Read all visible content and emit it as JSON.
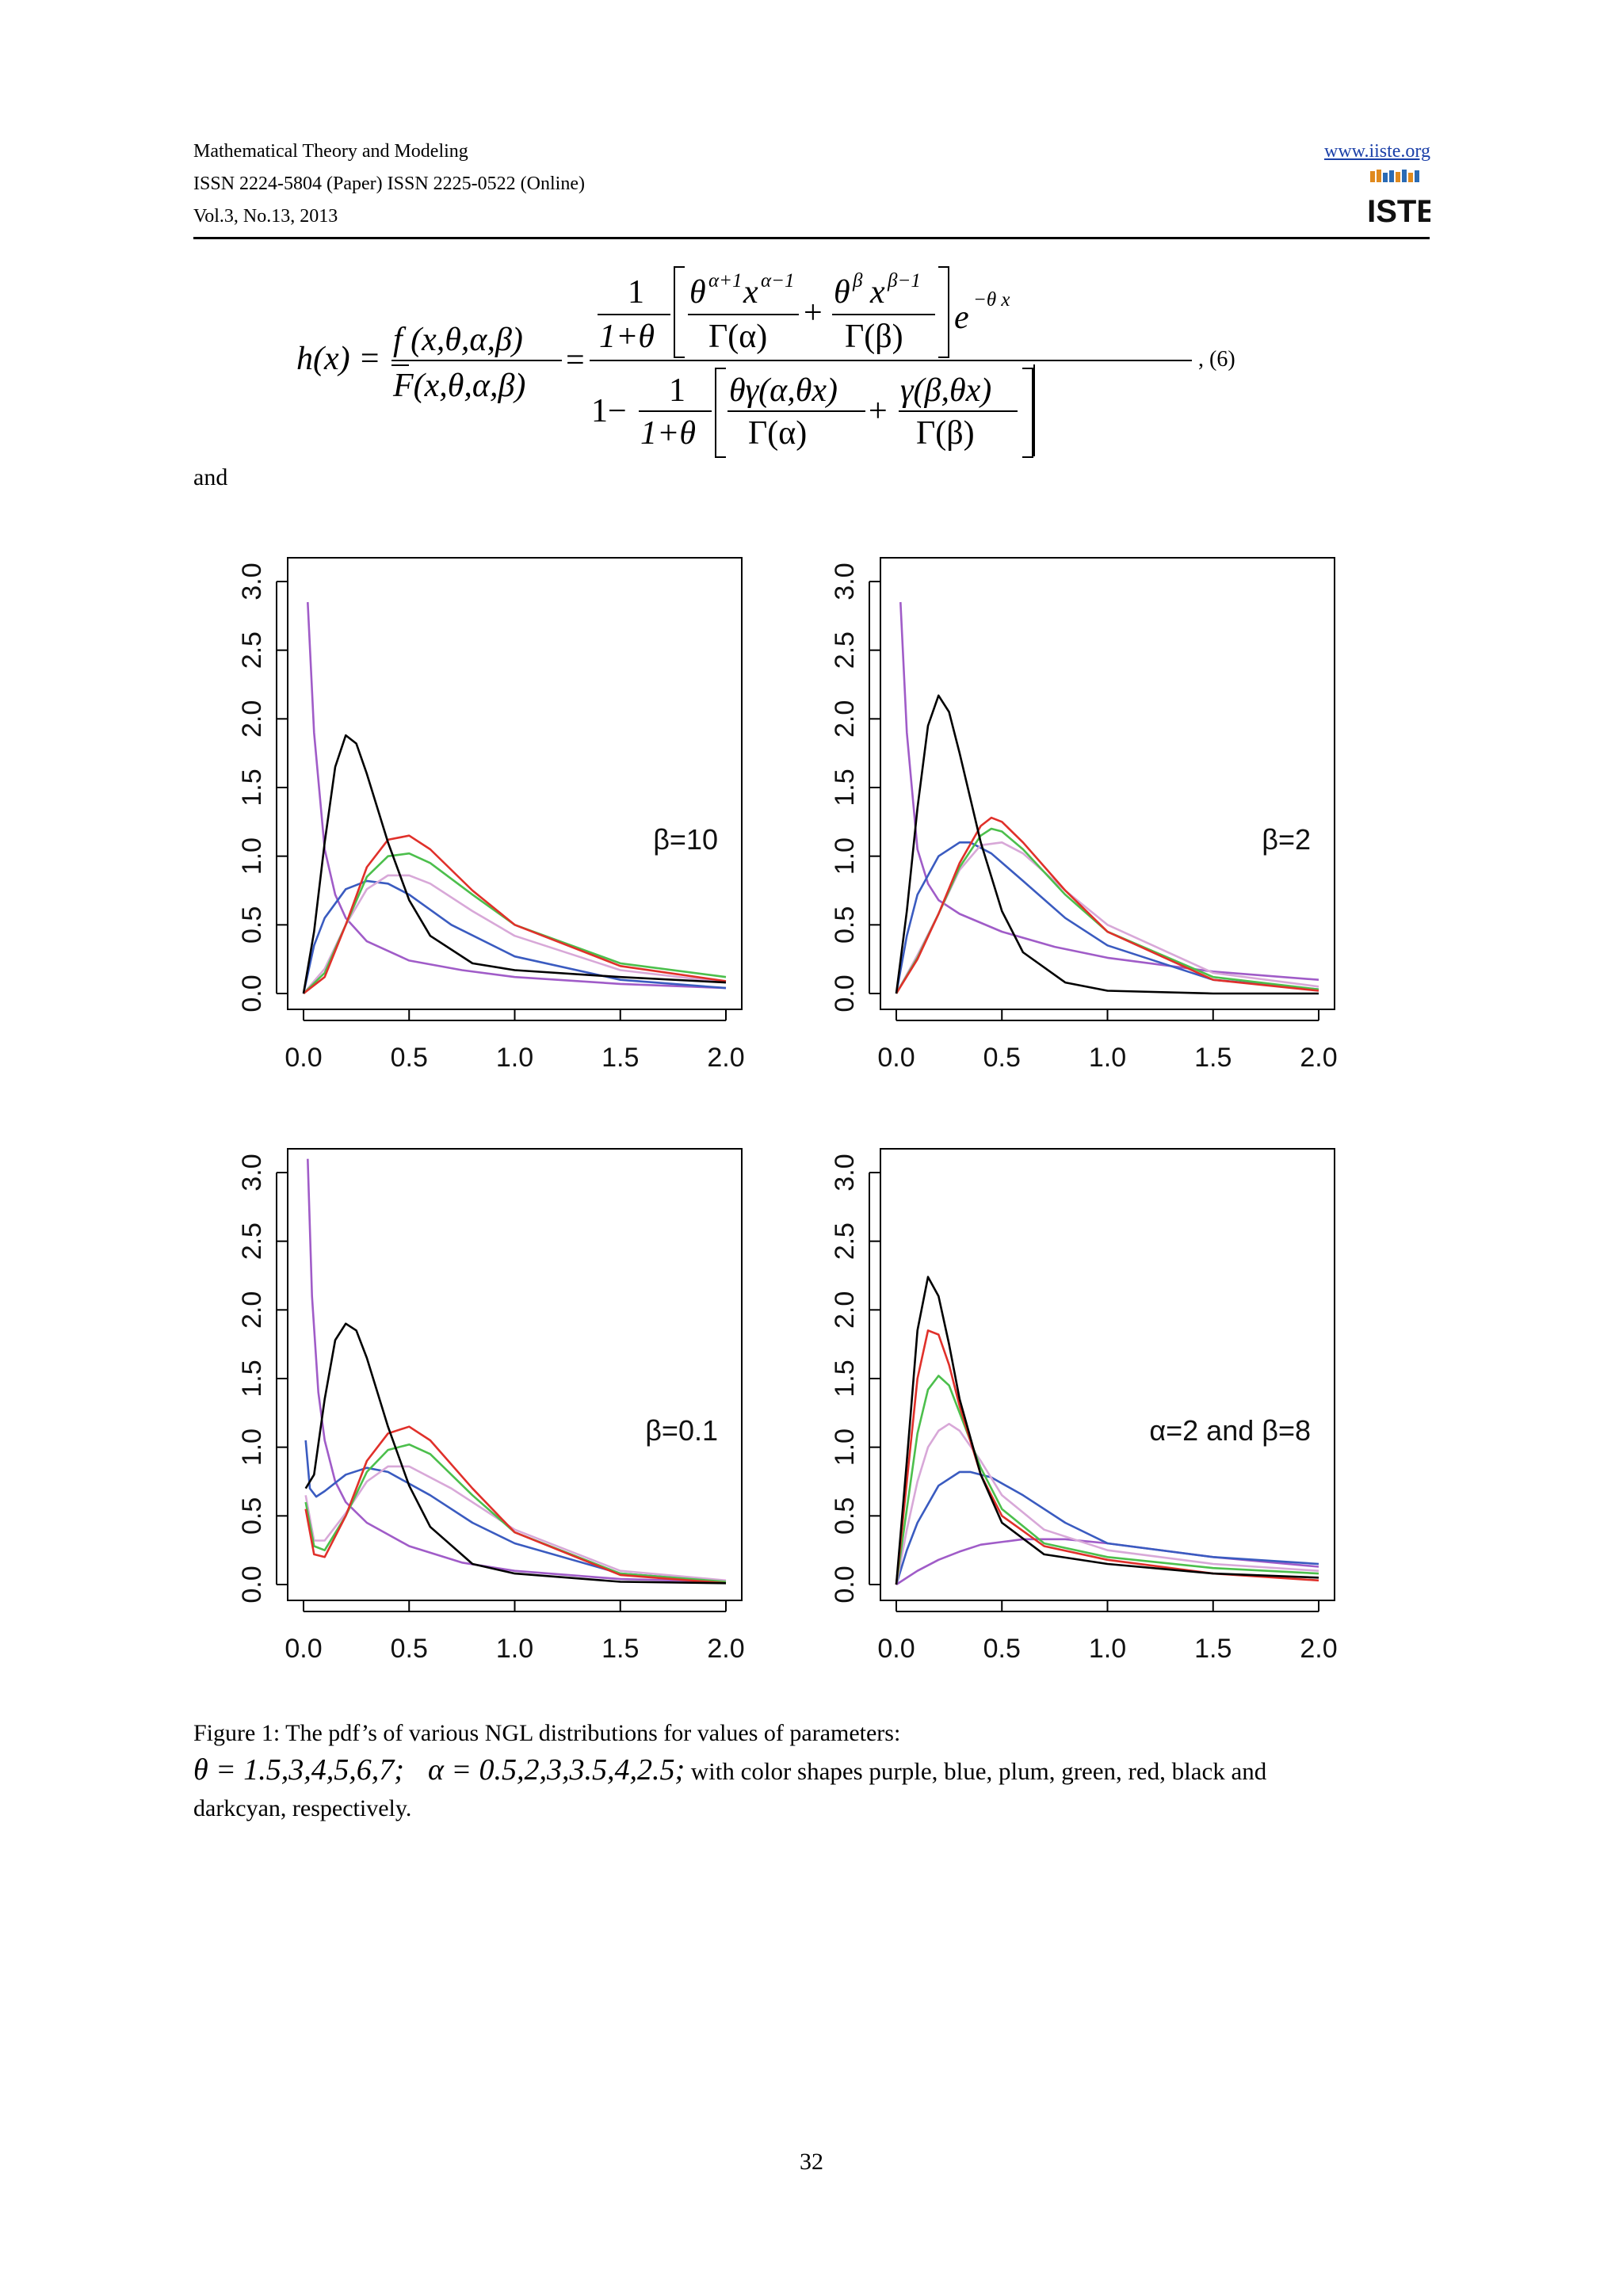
{
  "header": {
    "journal": "Mathematical Theory and Modeling",
    "issn": "ISSN 2224-5804 (Paper)    ISSN 2225-0522 (Online)",
    "volume": "Vol.3, No.13, 2013",
    "website": "www.iiste.org",
    "logo_text": "IISTE"
  },
  "equation": {
    "lhs": "h(x) =",
    "ratio_num": "f (x,θ,α,β)",
    "ratio_den": "F(x,θ,α,β)",
    "eq2": "=",
    "one": "1",
    "one_plus_theta": "1+θ",
    "t1_num": "θ",
    "t1_sup": "α+1",
    "t1_x": "x",
    "t1_xsup": "α−1",
    "gamma_alpha": "Γ(α)",
    "plus": "+",
    "t2_num": "θ",
    "t2_sup": "β",
    "t2_x": "x",
    "t2_xsup": "β−1",
    "gamma_beta": "Γ(β)",
    "exp_e": "e",
    "exp_sup": "−θ x",
    "one_minus": "1−",
    "d1_num": "θγ(α,θx)",
    "d2_num": "γ(β,θx)",
    "comma_num": ", (6)"
  },
  "and_text": "and",
  "colors": {
    "purple": "#a05cc8",
    "blue": "#3a5bc0",
    "plum": "#d8a8d8",
    "green": "#4cbf4c",
    "red": "#e0302a",
    "black": "#000000"
  },
  "chart_data": [
    {
      "type": "line",
      "annotation": "β=10",
      "xlim": [
        0,
        2
      ],
      "ylim": [
        0,
        3
      ],
      "xticks": [
        "0.0",
        "0.5",
        "1.0",
        "1.5",
        "2.0"
      ],
      "yticks": [
        "0.0",
        "0.5",
        "1.0",
        "1.5",
        "2.0",
        "2.5",
        "3.0"
      ],
      "series": [
        {
          "color": "purple",
          "x": [
            0.02,
            0.05,
            0.1,
            0.15,
            0.2,
            0.3,
            0.5,
            0.75,
            1.0,
            1.5,
            2.0
          ],
          "y": [
            2.85,
            1.9,
            1.05,
            0.72,
            0.55,
            0.38,
            0.24,
            0.17,
            0.12,
            0.07,
            0.04
          ]
        },
        {
          "color": "blue",
          "x": [
            0,
            0.05,
            0.1,
            0.2,
            0.3,
            0.4,
            0.5,
            0.7,
            1.0,
            1.5,
            2.0
          ],
          "y": [
            0,
            0.35,
            0.55,
            0.76,
            0.82,
            0.8,
            0.72,
            0.5,
            0.27,
            0.1,
            0.04
          ]
        },
        {
          "color": "plum",
          "x": [
            0,
            0.1,
            0.2,
            0.3,
            0.4,
            0.5,
            0.6,
            0.8,
            1.0,
            1.5,
            2.0
          ],
          "y": [
            0,
            0.18,
            0.5,
            0.76,
            0.86,
            0.86,
            0.8,
            0.6,
            0.42,
            0.17,
            0.08
          ]
        },
        {
          "color": "green",
          "x": [
            0,
            0.1,
            0.2,
            0.3,
            0.4,
            0.5,
            0.6,
            0.8,
            1.0,
            1.5,
            2.0
          ],
          "y": [
            0,
            0.15,
            0.5,
            0.85,
            1.0,
            1.02,
            0.95,
            0.72,
            0.5,
            0.22,
            0.12
          ]
        },
        {
          "color": "red",
          "x": [
            0,
            0.1,
            0.2,
            0.3,
            0.4,
            0.5,
            0.6,
            0.8,
            1.0,
            1.5,
            2.0
          ],
          "y": [
            0,
            0.12,
            0.5,
            0.92,
            1.12,
            1.15,
            1.05,
            0.75,
            0.5,
            0.2,
            0.09
          ]
        },
        {
          "color": "black",
          "x": [
            0,
            0.05,
            0.1,
            0.15,
            0.2,
            0.25,
            0.3,
            0.4,
            0.5,
            0.6,
            0.8,
            1.0,
            1.5,
            2.0
          ],
          "y": [
            0,
            0.45,
            1.1,
            1.65,
            1.88,
            1.82,
            1.6,
            1.1,
            0.68,
            0.42,
            0.22,
            0.17,
            0.12,
            0.08
          ]
        }
      ]
    },
    {
      "type": "line",
      "annotation": "β=2",
      "xlim": [
        0,
        2
      ],
      "ylim": [
        0,
        3
      ],
      "xticks": [
        "0.0",
        "0.5",
        "1.0",
        "1.5",
        "2.0"
      ],
      "yticks": [
        "0.0",
        "0.5",
        "1.0",
        "1.5",
        "2.0",
        "2.5",
        "3.0"
      ],
      "series": [
        {
          "color": "purple",
          "x": [
            0.02,
            0.05,
            0.1,
            0.15,
            0.2,
            0.3,
            0.5,
            0.75,
            1.0,
            1.5,
            2.0
          ],
          "y": [
            2.85,
            1.9,
            1.05,
            0.8,
            0.68,
            0.58,
            0.45,
            0.34,
            0.26,
            0.16,
            0.1
          ]
        },
        {
          "color": "blue",
          "x": [
            0,
            0.05,
            0.1,
            0.2,
            0.3,
            0.35,
            0.45,
            0.6,
            0.8,
            1.0,
            1.5,
            2.0
          ],
          "y": [
            0,
            0.42,
            0.72,
            1.0,
            1.1,
            1.1,
            1.02,
            0.82,
            0.55,
            0.35,
            0.1,
            0.03
          ]
        },
        {
          "color": "plum",
          "x": [
            0,
            0.1,
            0.2,
            0.3,
            0.4,
            0.5,
            0.6,
            0.8,
            1.0,
            1.5,
            2.0
          ],
          "y": [
            0,
            0.28,
            0.58,
            0.9,
            1.08,
            1.1,
            1.02,
            0.75,
            0.5,
            0.15,
            0.05
          ]
        },
        {
          "color": "green",
          "x": [
            0,
            0.1,
            0.2,
            0.3,
            0.4,
            0.45,
            0.5,
            0.6,
            0.8,
            1.0,
            1.5,
            2.0
          ],
          "y": [
            0,
            0.26,
            0.58,
            0.92,
            1.15,
            1.2,
            1.18,
            1.05,
            0.72,
            0.45,
            0.12,
            0.03
          ]
        },
        {
          "color": "red",
          "x": [
            0,
            0.1,
            0.2,
            0.3,
            0.4,
            0.45,
            0.5,
            0.6,
            0.8,
            1.0,
            1.5,
            2.0
          ],
          "y": [
            0,
            0.25,
            0.58,
            0.95,
            1.22,
            1.28,
            1.25,
            1.1,
            0.75,
            0.45,
            0.1,
            0.02
          ]
        },
        {
          "color": "black",
          "x": [
            0,
            0.05,
            0.1,
            0.15,
            0.2,
            0.25,
            0.3,
            0.4,
            0.5,
            0.6,
            0.8,
            1.0,
            1.5,
            2.0
          ],
          "y": [
            0,
            0.6,
            1.35,
            1.95,
            2.17,
            2.05,
            1.75,
            1.1,
            0.6,
            0.3,
            0.08,
            0.02,
            0,
            0
          ]
        }
      ]
    },
    {
      "type": "line",
      "annotation": "β=0.1",
      "xlim": [
        0,
        2
      ],
      "ylim": [
        0,
        3
      ],
      "xticks": [
        "0.0",
        "0.5",
        "1.0",
        "1.5",
        "2.0"
      ],
      "yticks": [
        "0.0",
        "0.5",
        "1.0",
        "1.5",
        "2.0",
        "2.5",
        "3.0"
      ],
      "series": [
        {
          "color": "purple",
          "x": [
            0.02,
            0.04,
            0.07,
            0.1,
            0.15,
            0.2,
            0.3,
            0.5,
            0.75,
            1.0,
            1.5,
            2.0
          ],
          "y": [
            3.1,
            2.1,
            1.4,
            1.05,
            0.75,
            0.6,
            0.45,
            0.28,
            0.16,
            0.1,
            0.04,
            0.02
          ]
        },
        {
          "color": "blue",
          "x": [
            0.01,
            0.03,
            0.06,
            0.1,
            0.2,
            0.3,
            0.4,
            0.6,
            0.8,
            1.0,
            1.5,
            2.0
          ],
          "y": [
            1.05,
            0.7,
            0.64,
            0.68,
            0.8,
            0.85,
            0.82,
            0.65,
            0.45,
            0.3,
            0.08,
            0.02
          ]
        },
        {
          "color": "plum",
          "x": [
            0.01,
            0.05,
            0.1,
            0.2,
            0.3,
            0.4,
            0.5,
            0.7,
            1.0,
            1.5,
            2.0
          ],
          "y": [
            0.65,
            0.32,
            0.32,
            0.52,
            0.75,
            0.86,
            0.86,
            0.7,
            0.4,
            0.1,
            0.03
          ]
        },
        {
          "color": "green",
          "x": [
            0.01,
            0.05,
            0.1,
            0.2,
            0.3,
            0.4,
            0.5,
            0.6,
            0.8,
            1.0,
            1.5,
            2.0
          ],
          "y": [
            0.6,
            0.28,
            0.25,
            0.5,
            0.82,
            0.98,
            1.02,
            0.95,
            0.65,
            0.38,
            0.08,
            0.02
          ]
        },
        {
          "color": "red",
          "x": [
            0.01,
            0.05,
            0.1,
            0.2,
            0.3,
            0.4,
            0.5,
            0.6,
            0.8,
            1.0,
            1.5,
            2.0
          ],
          "y": [
            0.55,
            0.22,
            0.2,
            0.5,
            0.9,
            1.1,
            1.15,
            1.05,
            0.7,
            0.38,
            0.07,
            0.01
          ]
        },
        {
          "color": "black",
          "x": [
            0.01,
            0.05,
            0.1,
            0.15,
            0.2,
            0.25,
            0.3,
            0.4,
            0.5,
            0.6,
            0.8,
            1.0,
            1.5,
            2.0
          ],
          "y": [
            0.7,
            0.8,
            1.35,
            1.78,
            1.9,
            1.85,
            1.65,
            1.15,
            0.72,
            0.42,
            0.15,
            0.08,
            0.02,
            0.01
          ]
        }
      ]
    },
    {
      "type": "line",
      "annotation": "α=2 and β=8",
      "xlim": [
        0,
        2
      ],
      "ylim": [
        0,
        3
      ],
      "xticks": [
        "0.0",
        "0.5",
        "1.0",
        "1.5",
        "2.0"
      ],
      "yticks": [
        "0.0",
        "0.5",
        "1.0",
        "1.5",
        "2.0",
        "2.5",
        "3.0"
      ],
      "series": [
        {
          "color": "purple",
          "x": [
            0,
            0.1,
            0.2,
            0.3,
            0.4,
            0.6,
            0.8,
            1.0,
            1.5,
            2.0
          ],
          "y": [
            0,
            0.1,
            0.18,
            0.24,
            0.29,
            0.33,
            0.33,
            0.3,
            0.2,
            0.13
          ]
        },
        {
          "color": "blue",
          "x": [
            0,
            0.05,
            0.1,
            0.2,
            0.3,
            0.35,
            0.45,
            0.6,
            0.8,
            1.0,
            1.5,
            2.0
          ],
          "y": [
            0,
            0.25,
            0.45,
            0.72,
            0.82,
            0.82,
            0.78,
            0.65,
            0.45,
            0.3,
            0.2,
            0.15
          ]
        },
        {
          "color": "plum",
          "x": [
            0,
            0.05,
            0.1,
            0.15,
            0.2,
            0.25,
            0.3,
            0.4,
            0.5,
            0.7,
            1.0,
            1.5,
            2.0
          ],
          "y": [
            0,
            0.4,
            0.75,
            1.0,
            1.12,
            1.17,
            1.12,
            0.9,
            0.65,
            0.4,
            0.25,
            0.15,
            0.1
          ]
        },
        {
          "color": "green",
          "x": [
            0,
            0.05,
            0.1,
            0.15,
            0.2,
            0.25,
            0.3,
            0.4,
            0.5,
            0.7,
            1.0,
            1.5,
            2.0
          ],
          "y": [
            0,
            0.55,
            1.1,
            1.42,
            1.52,
            1.45,
            1.25,
            0.85,
            0.55,
            0.3,
            0.2,
            0.12,
            0.08
          ]
        },
        {
          "color": "red",
          "x": [
            0,
            0.05,
            0.1,
            0.15,
            0.2,
            0.25,
            0.3,
            0.4,
            0.5,
            0.7,
            1.0,
            1.5,
            2.0
          ],
          "y": [
            0,
            0.75,
            1.5,
            1.85,
            1.82,
            1.6,
            1.3,
            0.8,
            0.5,
            0.28,
            0.18,
            0.08,
            0.03
          ]
        },
        {
          "color": "black",
          "x": [
            0,
            0.05,
            0.1,
            0.15,
            0.2,
            0.25,
            0.3,
            0.4,
            0.5,
            0.7,
            1.0,
            1.5,
            2.0
          ],
          "y": [
            0,
            0.9,
            1.85,
            2.24,
            2.1,
            1.75,
            1.35,
            0.8,
            0.45,
            0.22,
            0.15,
            0.08,
            0.05
          ]
        }
      ]
    }
  ],
  "caption": {
    "line1": "Figure 1: The pdf’s of various NGL distributions for values of parameters:",
    "theta_values": "θ = 1.5,3,4,5,6,7;",
    "alpha_values": "α = 0.5,2,3,3.5,4,2.5;",
    "colors_text": "with color shapes purple, blue, plum, green, red, black and",
    "line3": "darkcyan, respectively."
  },
  "page_number": "32"
}
